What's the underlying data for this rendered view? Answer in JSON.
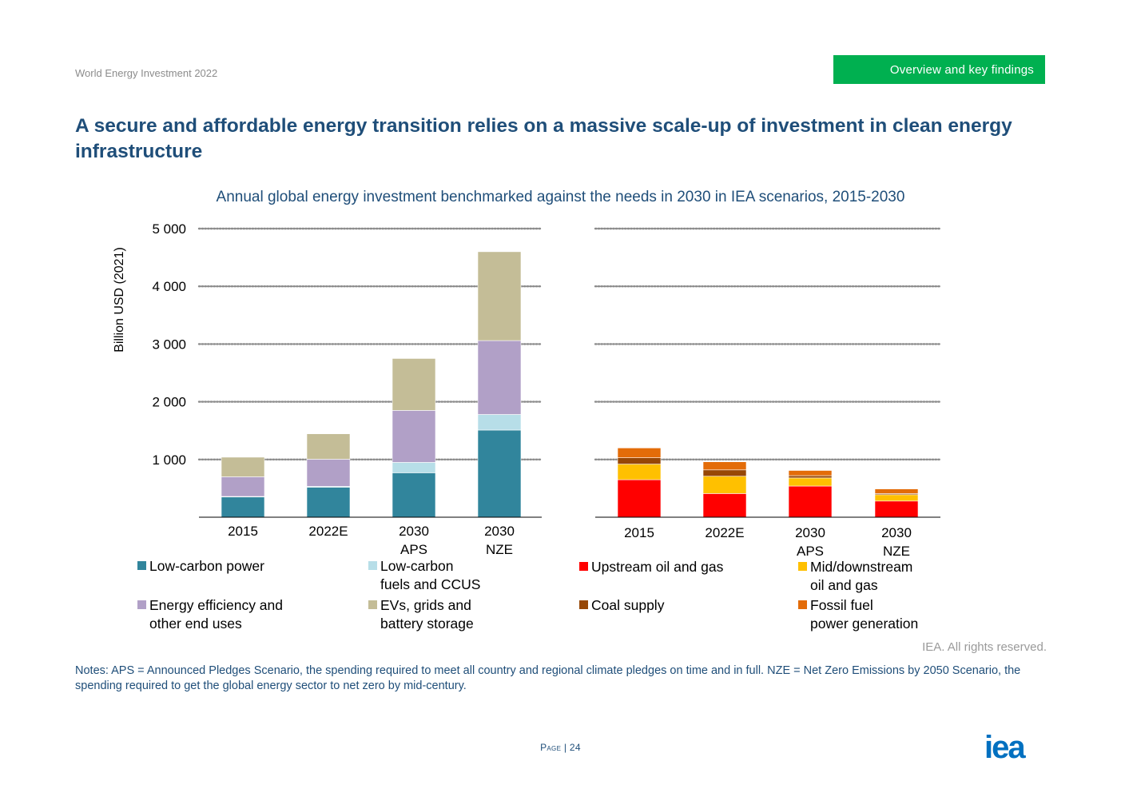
{
  "header": {
    "publication": "World Energy Investment 2022",
    "section_tab": "Overview and key findings"
  },
  "title": "A secure and affordable energy transition relies on a massive scale-up of investment in clean energy infrastructure",
  "chart_title": "Annual global energy investment benchmarked against the needs in 2030 in IEA scenarios, 2015-2030",
  "colors": {
    "low_carbon_power": "#31859c",
    "low_carbon_fuels": "#b7dee8",
    "energy_efficiency": "#b1a0c7",
    "evs_grids": "#c4bd97",
    "upstream": "#ff0000",
    "mid_downstream": "#ffc000",
    "coal_supply": "#974706",
    "fossil_power": "#e36c09",
    "title_blue": "#1f4e79",
    "tab_green": "#00b050"
  },
  "chart_data": [
    {
      "type": "bar",
      "stacked": true,
      "categories": [
        "2015",
        "2022E",
        "2030\nAPS",
        "2030\nNZE"
      ],
      "ylabel": "Billion USD (2021)",
      "ylim": [
        0,
        5000
      ],
      "yticks": [
        "1 000",
        "2 000",
        "3 000",
        "4 000",
        "5 000"
      ],
      "grid": true,
      "series": [
        {
          "name": "Low-carbon power",
          "color_key": "low_carbon_power",
          "values": [
            350,
            520,
            770,
            1510
          ]
        },
        {
          "name": "Low-carbon fuels and CCUS",
          "color_key": "low_carbon_fuels",
          "values": [
            10,
            15,
            180,
            270
          ]
        },
        {
          "name": "Energy efficiency and other end uses",
          "color_key": "energy_efficiency",
          "values": [
            340,
            470,
            900,
            1280
          ]
        },
        {
          "name": "EVs, grids and battery storage",
          "color_key": "evs_grids",
          "values": [
            340,
            440,
            900,
            1540
          ]
        }
      ]
    },
    {
      "type": "bar",
      "stacked": true,
      "categories": [
        "2015",
        "2022E",
        "2030\nAPS",
        "2030\nNZE"
      ],
      "ylim": [
        0,
        5000
      ],
      "grid": true,
      "series": [
        {
          "name": "Upstream oil and gas",
          "color_key": "upstream",
          "values": [
            650,
            410,
            540,
            280
          ]
        },
        {
          "name": "Mid/downstream oil and gas",
          "color_key": "mid_downstream",
          "values": [
            270,
            300,
            140,
            110
          ]
        },
        {
          "name": "Coal supply",
          "color_key": "coal_supply",
          "values": [
            110,
            110,
            40,
            20
          ]
        },
        {
          "name": "Fossil fuel power generation",
          "color_key": "fossil_power",
          "values": [
            170,
            140,
            90,
            80
          ]
        }
      ]
    }
  ],
  "legend_left": [
    {
      "line1": "Low-carbon power",
      "line2": "",
      "color_key": "low_carbon_power"
    },
    {
      "line1": "Low-carbon",
      "line2": "fuels and CCUS",
      "color_key": "low_carbon_fuels"
    },
    {
      "line1": "Energy efficiency and",
      "line2": "other end uses",
      "color_key": "energy_efficiency"
    },
    {
      "line1": "EVs, grids and",
      "line2": "battery storage",
      "color_key": "evs_grids"
    }
  ],
  "legend_right": [
    {
      "line1": "Upstream oil and gas",
      "line2": "",
      "color_key": "upstream"
    },
    {
      "line1": "Mid/downstream",
      "line2": "oil and gas",
      "color_key": "mid_downstream"
    },
    {
      "line1": "Coal supply",
      "line2": "",
      "color_key": "coal_supply"
    },
    {
      "line1": "Fossil fuel",
      "line2": "power generation",
      "color_key": "fossil_power"
    }
  ],
  "rights": "IEA. All rights reserved.",
  "notes": "Notes: APS = Announced Pledges Scenario, the spending required to meet all country and regional climate pledges on time and in full. NZE = Net Zero Emissions by 2050 Scenario, the spending required to get the global energy sector to net zero by mid-century.",
  "page": {
    "label": "Page",
    "number": "24"
  },
  "logo_text": "iea"
}
